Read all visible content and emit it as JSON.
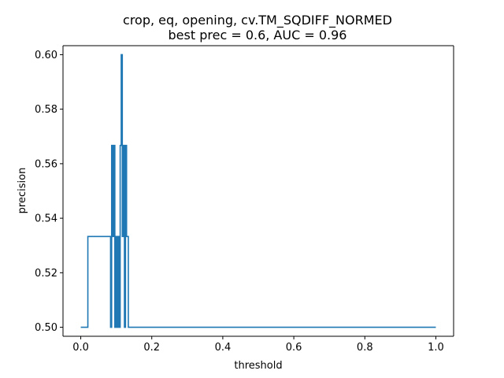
{
  "chart_data": {
    "type": "line",
    "title": "crop, eq, opening, cv.TM_SQDIFF_NORMED",
    "subtitle": "best prec = 0.6, AUC = 0.96",
    "xlabel": "threshold",
    "ylabel": "precision",
    "xlim": [
      -0.05,
      1.05
    ],
    "ylim": [
      0.4967,
      0.6033
    ],
    "xticks": [
      0.0,
      0.2,
      0.4,
      0.6,
      0.8,
      1.0
    ],
    "xtick_labels": [
      "0.0",
      "0.2",
      "0.4",
      "0.6",
      "0.8",
      "1.0"
    ],
    "yticks": [
      0.5,
      0.52,
      0.54,
      0.56,
      0.58,
      0.6
    ],
    "ytick_labels": [
      "0.50",
      "0.52",
      "0.54",
      "0.56",
      "0.58",
      "0.60"
    ],
    "grid": false,
    "line_color": "#1f77b4",
    "series": [
      {
        "x": [
          0.0,
          0.02,
          0.02,
          0.084,
          0.084,
          0.087,
          0.087,
          0.09,
          0.09,
          0.093,
          0.093,
          0.096,
          0.096,
          0.099,
          0.099,
          0.102,
          0.102,
          0.105,
          0.105,
          0.108,
          0.108,
          0.111,
          0.111,
          0.114,
          0.114,
          0.117,
          0.117,
          0.12,
          0.12,
          0.123,
          0.123,
          0.126,
          0.126,
          0.129,
          0.129,
          0.134,
          0.134,
          1.0
        ],
        "y": [
          0.5,
          0.5,
          0.5333,
          0.5333,
          0.5,
          0.5,
          0.5667,
          0.5667,
          0.5333,
          0.5333,
          0.5667,
          0.5667,
          0.5,
          0.5,
          0.5333,
          0.5333,
          0.5,
          0.5,
          0.5333,
          0.5333,
          0.5,
          0.5,
          0.5667,
          0.5667,
          0.6,
          0.6,
          0.5333,
          0.5333,
          0.5667,
          0.5667,
          0.5,
          0.5,
          0.5667,
          0.5667,
          0.5333,
          0.5333,
          0.5,
          0.5
        ]
      }
    ]
  }
}
